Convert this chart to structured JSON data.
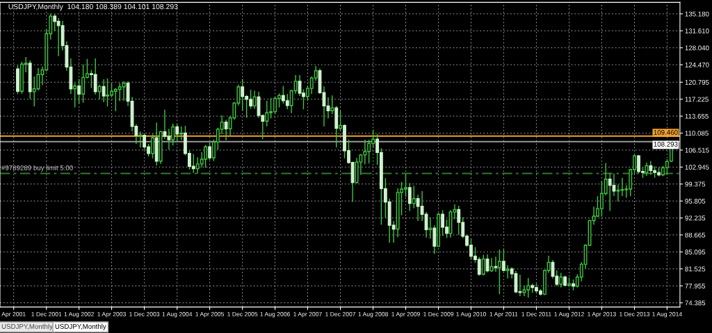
{
  "chart_data": {
    "type": "candlestick",
    "title": "USDJPY,Monthly  104.180 108.389 104.101 108.293",
    "color": "#3cc83c",
    "colors": [
      "#cef1ce",
      "#3cc83c",
      "#3cc83c",
      "#cef1ce",
      "#3cc83c",
      "#3cc83c",
      "#3cc83c",
      "#3cc83c",
      "#3cc83c",
      "#cef1ce",
      "#cef1ce",
      "#cef1ce",
      "#cef1ce",
      "#cef1ce",
      "#3cc83c",
      "#cef1ce",
      "#3cc83c",
      "#3cc83c",
      "#cef1ce",
      "#cef1ce",
      "#3cc83c",
      "#cef1ce",
      "#3cc83c",
      "#3cc83c",
      "#3cc83c",
      "#3cc83c",
      "#3cc83c",
      "#cef1ce",
      "#cef1ce",
      "#cef1ce",
      "#3cc83c",
      "#cef1ce",
      "#cef1ce",
      "#3cc83c",
      "#cef1ce",
      "#3cc83c",
      "#cef1ce",
      "#cef1ce",
      "#3cc83c",
      "#cef1ce",
      "#3cc83c",
      "#cef1ce",
      "#cef1ce",
      "#cef1ce",
      "#3cc83c",
      "#3cc83c",
      "#3cc83c",
      "#cef1ce",
      "#3cc83c",
      "#3cc83c",
      "#3cc83c",
      "#cef1ce",
      "#3cc83c",
      "#3cc83c",
      "#3cc83c",
      "#cef1ce",
      "#cef1ce",
      "#cef1ce",
      "#3cc83c",
      "#cef1ce",
      "#cef1ce",
      "#3cc83c",
      "#3cc83c",
      "#3cc83c",
      "#3cc83c",
      "#cef1ce",
      "#cef1ce",
      "#3cc83c",
      "#3cc83c",
      "#cef1ce",
      "#cef1ce",
      "#3cc83c",
      "#3cc83c",
      "#3cc83c",
      "#cef1ce",
      "#cef1ce",
      "#cef1ce",
      "#3cc83c",
      "#cef1ce",
      "#3cc83c",
      "#cef1ce",
      "#cef1ce",
      "#cef1ce",
      "#3cc83c",
      "#3cc83c",
      "#3cc83c",
      "#3cc83c",
      "#3cc83c",
      "#cef1ce",
      "#cef1ce",
      "#cef1ce",
      "#cef1ce",
      "#cef1ce",
      "#3cc83c",
      "#3cc83c",
      "#3cc83c",
      "#cef1ce",
      "#3cc83c",
      "#cef1ce",
      "#cef1ce",
      "#cef1ce",
      "#3cc83c",
      "#cef1ce",
      "#3cc83c",
      "#cef1ce",
      "#cef1ce",
      "#3cc83c",
      "#3cc83c",
      "#cef1ce",
      "#cef1ce",
      "#cef1ce",
      "#cef1ce",
      "#cef1ce",
      "#cef1ce",
      "#3cc83c",
      "#cef1ce",
      "#3cc83c",
      "#cef1ce",
      "#3cc83c",
      "#cef1ce",
      "#3cc83c",
      "#cef1ce",
      "#cef1ce",
      "#cef1ce",
      "#3cc83c",
      "#3cc83c",
      "#cef1ce",
      "#cef1ce",
      "#cef1ce",
      "#3cc83c",
      "#3cc83c",
      "#cef1ce",
      "#cef1ce",
      "#3cc83c",
      "#cef1ce",
      "#3cc83c",
      "#cef1ce",
      "#3cc83c",
      "#3cc83c",
      "#3cc83c",
      "#3cc83c",
      "#3cc83c",
      "#3cc83c",
      "#3cc83c",
      "#3cc83c",
      "#cef1ce",
      "#cef1ce",
      "#3cc83c",
      "#3cc83c",
      "#3cc83c",
      "#3cc83c",
      "#3cc83c",
      "#cef1ce",
      "#cef1ce",
      "#3cc83c",
      "#cef1ce",
      "#cef1ce",
      "#cef1ce",
      "#3cc83c",
      "#3cc83c",
      "#3cc83c"
    ],
    "x": [
      "2001-05",
      "2001-06",
      "2001-07",
      "2001-08",
      "2001-09",
      "2001-10",
      "2001-11",
      "2001-12",
      "2002-01",
      "2002-02",
      "2002-03",
      "2002-04",
      "2002-05",
      "2002-06",
      "2002-07",
      "2002-08",
      "2002-09",
      "2002-10",
      "2002-11",
      "2002-12",
      "2003-01",
      "2003-02",
      "2003-03",
      "2003-04",
      "2003-05",
      "2003-06",
      "2003-07",
      "2003-08",
      "2003-09",
      "2003-10",
      "2003-11",
      "2003-12",
      "2004-01",
      "2004-02",
      "2004-03",
      "2004-04",
      "2004-05",
      "2004-06",
      "2004-07",
      "2004-08",
      "2004-09",
      "2004-10",
      "2004-11",
      "2004-12",
      "2005-01",
      "2005-02",
      "2005-03",
      "2005-04",
      "2005-05",
      "2005-06",
      "2005-07",
      "2005-08",
      "2005-09",
      "2005-10",
      "2005-11",
      "2005-12",
      "2006-01",
      "2006-02",
      "2006-03",
      "2006-04",
      "2006-05",
      "2006-06",
      "2006-07",
      "2006-08",
      "2006-09",
      "2006-10",
      "2006-11",
      "2006-12",
      "2007-01",
      "2007-02",
      "2007-03",
      "2007-04",
      "2007-05",
      "2007-06",
      "2007-07",
      "2007-08",
      "2007-09",
      "2007-10",
      "2007-11",
      "2007-12",
      "2008-01",
      "2008-02",
      "2008-03",
      "2008-04",
      "2008-05",
      "2008-06",
      "2008-07",
      "2008-08",
      "2008-09",
      "2008-10",
      "2008-11",
      "2008-12",
      "2009-01",
      "2009-02",
      "2009-03",
      "2009-04",
      "2009-05",
      "2009-06",
      "2009-07",
      "2009-08",
      "2009-09",
      "2009-10",
      "2009-11",
      "2009-12",
      "2010-01",
      "2010-02",
      "2010-03",
      "2010-04",
      "2010-05",
      "2010-06",
      "2010-07",
      "2010-08",
      "2010-09",
      "2010-10",
      "2010-11",
      "2010-12",
      "2011-01",
      "2011-02",
      "2011-03",
      "2011-04",
      "2011-05",
      "2011-06",
      "2011-07",
      "2011-08",
      "2011-09",
      "2011-10",
      "2011-11",
      "2011-12",
      "2012-01",
      "2012-02",
      "2012-03",
      "2012-04",
      "2012-05",
      "2012-06",
      "2012-07",
      "2012-08",
      "2012-09",
      "2012-10",
      "2012-11",
      "2012-12",
      "2013-01",
      "2013-02",
      "2013-03",
      "2013-04",
      "2013-05",
      "2013-06",
      "2013-07",
      "2013-08",
      "2013-09",
      "2013-10",
      "2013-11",
      "2013-12",
      "2014-01",
      "2014-02",
      "2014-03",
      "2014-04",
      "2014-05",
      "2014-06",
      "2014-07",
      "2014-08",
      "2014-09"
    ],
    "ohlc": [
      [
        123.6,
        124.2,
        118.4,
        118.9
      ],
      [
        118.9,
        125.0,
        118.5,
        124.6
      ],
      [
        124.6,
        126.0,
        123.0,
        124.8
      ],
      [
        124.8,
        125.3,
        117.4,
        118.8
      ],
      [
        118.8,
        121.9,
        115.8,
        119.4
      ],
      [
        119.4,
        123.7,
        119.2,
        122.4
      ],
      [
        122.4,
        124.0,
        120.3,
        123.4
      ],
      [
        123.4,
        131.8,
        123.2,
        131.0
      ],
      [
        131.0,
        135.1,
        129.9,
        134.7
      ],
      [
        134.7,
        135.0,
        131.6,
        133.6
      ],
      [
        133.6,
        134.2,
        126.4,
        132.7
      ],
      [
        132.7,
        133.6,
        127.6,
        128.5
      ],
      [
        128.5,
        129.3,
        123.3,
        124.0
      ],
      [
        124.0,
        125.7,
        118.4,
        119.4
      ],
      [
        119.4,
        120.5,
        115.6,
        120.0
      ],
      [
        120.0,
        121.4,
        116.4,
        118.3
      ],
      [
        118.3,
        124.4,
        116.6,
        121.8
      ],
      [
        121.8,
        125.6,
        121.7,
        122.6
      ],
      [
        122.6,
        123.3,
        119.7,
        122.4
      ],
      [
        122.4,
        125.7,
        118.3,
        118.8
      ],
      [
        118.8,
        120.2,
        117.3,
        119.9
      ],
      [
        119.9,
        121.3,
        116.7,
        117.9
      ],
      [
        117.9,
        121.5,
        115.8,
        118.1
      ],
      [
        118.1,
        120.5,
        117.7,
        118.9
      ],
      [
        118.9,
        119.4,
        114.8,
        119.3
      ],
      [
        119.3,
        120.5,
        116.9,
        119.8
      ],
      [
        119.8,
        120.9,
        117.0,
        120.6
      ],
      [
        120.6,
        120.9,
        115.9,
        116.8
      ],
      [
        116.8,
        117.6,
        110.5,
        111.5
      ],
      [
        111.5,
        111.9,
        107.9,
        109.6
      ],
      [
        109.6,
        110.3,
        107.2,
        109.6
      ],
      [
        109.6,
        109.9,
        106.7,
        107.2
      ],
      [
        107.2,
        107.7,
        105.3,
        105.8
      ],
      [
        105.8,
        109.8,
        104.9,
        109.1
      ],
      [
        109.1,
        112.2,
        103.4,
        104.2
      ],
      [
        104.2,
        110.5,
        103.7,
        110.4
      ],
      [
        110.4,
        114.9,
        108.9,
        109.4
      ],
      [
        109.4,
        110.9,
        106.7,
        108.7
      ],
      [
        108.7,
        112.0,
        107.6,
        111.4
      ],
      [
        111.4,
        111.9,
        108.4,
        109.9
      ],
      [
        109.9,
        111.4,
        108.8,
        110.1
      ],
      [
        110.1,
        111.5,
        105.5,
        105.8
      ],
      [
        105.8,
        106.3,
        102.5,
        103.1
      ],
      [
        103.1,
        105.6,
        101.8,
        102.6
      ],
      [
        102.6,
        104.9,
        101.7,
        103.6
      ],
      [
        103.6,
        106.0,
        103.0,
        104.6
      ],
      [
        104.6,
        107.5,
        102.9,
        107.2
      ],
      [
        107.2,
        108.0,
        104.5,
        104.9
      ],
      [
        104.9,
        108.6,
        104.3,
        108.2
      ],
      [
        108.2,
        111.1,
        106.7,
        110.9
      ],
      [
        110.9,
        113.7,
        110.0,
        112.4
      ],
      [
        112.4,
        112.8,
        108.7,
        111.0
      ],
      [
        111.0,
        113.6,
        109.6,
        113.3
      ],
      [
        113.3,
        116.5,
        113.0,
        116.4
      ],
      [
        116.4,
        120.2,
        116.0,
        119.8
      ],
      [
        119.8,
        121.4,
        114.9,
        117.8
      ],
      [
        117.8,
        118.0,
        113.4,
        117.2
      ],
      [
        117.2,
        119.1,
        115.3,
        115.8
      ],
      [
        115.8,
        118.9,
        115.3,
        117.7
      ],
      [
        117.7,
        118.7,
        113.4,
        113.8
      ],
      [
        113.8,
        113.9,
        108.9,
        112.6
      ],
      [
        112.6,
        116.8,
        111.6,
        114.4
      ],
      [
        114.4,
        117.4,
        113.3,
        114.6
      ],
      [
        114.6,
        117.5,
        114.2,
        117.4
      ],
      [
        117.4,
        118.3,
        115.6,
        118.0
      ],
      [
        118.0,
        119.9,
        116.4,
        116.9
      ],
      [
        116.9,
        118.2,
        115.2,
        115.9
      ],
      [
        115.9,
        119.1,
        114.4,
        119.0
      ],
      [
        119.0,
        122.2,
        118.5,
        121.0
      ],
      [
        121.0,
        122.2,
        118.0,
        118.5
      ],
      [
        118.5,
        119.2,
        115.2,
        117.8
      ],
      [
        117.8,
        120.0,
        117.0,
        119.5
      ],
      [
        119.5,
        121.9,
        118.4,
        121.7
      ],
      [
        121.7,
        124.1,
        121.2,
        123.2
      ],
      [
        123.2,
        123.6,
        118.4,
        118.6
      ],
      [
        118.6,
        119.8,
        111.6,
        115.8
      ],
      [
        115.8,
        117.5,
        113.3,
        114.8
      ],
      [
        114.8,
        117.9,
        114.2,
        115.4
      ],
      [
        115.4,
        115.7,
        107.2,
        111.1
      ],
      [
        111.1,
        114.7,
        110.6,
        111.7
      ],
      [
        111.7,
        111.8,
        104.9,
        106.4
      ],
      [
        106.4,
        108.6,
        103.7,
        103.9
      ],
      [
        103.9,
        104.0,
        95.7,
        99.7
      ],
      [
        99.7,
        104.8,
        99.6,
        104.0
      ],
      [
        104.0,
        105.6,
        101.4,
        105.5
      ],
      [
        105.5,
        108.6,
        103.6,
        106.2
      ],
      [
        106.2,
        108.6,
        103.8,
        107.9
      ],
      [
        107.9,
        110.7,
        107.2,
        108.8
      ],
      [
        108.8,
        109.8,
        103.5,
        106.0
      ],
      [
        106.0,
        106.8,
        90.9,
        98.4
      ],
      [
        98.4,
        100.5,
        92.4,
        95.6
      ],
      [
        95.6,
        96.2,
        87.1,
        90.7
      ],
      [
        90.7,
        91.5,
        87.1,
        89.9
      ],
      [
        89.9,
        98.4,
        88.3,
        97.6
      ],
      [
        97.6,
        99.7,
        92.9,
        98.3
      ],
      [
        98.3,
        101.4,
        96.8,
        98.6
      ],
      [
        98.6,
        99.5,
        93.8,
        95.3
      ],
      [
        95.3,
        98.9,
        94.4,
        96.3
      ],
      [
        96.3,
        97.0,
        91.7,
        94.7
      ],
      [
        94.7,
        97.8,
        91.7,
        93.0
      ],
      [
        93.0,
        93.4,
        88.2,
        89.8
      ],
      [
        89.8,
        92.3,
        88.0,
        90.1
      ],
      [
        90.1,
        90.6,
        84.8,
        86.3
      ],
      [
        86.3,
        93.2,
        86.2,
        93.0
      ],
      [
        93.0,
        93.8,
        88.6,
        90.3
      ],
      [
        90.3,
        91.8,
        88.1,
        89.0
      ],
      [
        89.0,
        93.8,
        88.2,
        93.5
      ],
      [
        93.5,
        95.0,
        92.1,
        94.0
      ],
      [
        94.0,
        94.7,
        88.8,
        91.3
      ],
      [
        91.3,
        92.3,
        88.1,
        88.4
      ],
      [
        88.4,
        88.7,
        86.3,
        86.5
      ],
      [
        86.5,
        87.8,
        83.6,
        84.2
      ],
      [
        84.2,
        86.0,
        82.9,
        83.5
      ],
      [
        83.5,
        83.9,
        80.2,
        80.4
      ],
      [
        80.4,
        84.4,
        80.3,
        83.6
      ],
      [
        83.6,
        84.5,
        80.9,
        81.1
      ],
      [
        81.1,
        83.7,
        81.0,
        82.0
      ],
      [
        82.0,
        84.0,
        81.0,
        81.8
      ],
      [
        81.8,
        85.5,
        76.3,
        83.1
      ],
      [
        83.1,
        85.5,
        81.1,
        81.2
      ],
      [
        81.2,
        82.2,
        79.6,
        81.5
      ],
      [
        81.5,
        81.8,
        79.6,
        80.5
      ],
      [
        80.5,
        81.0,
        76.5,
        76.7
      ],
      [
        76.7,
        80.2,
        75.9,
        76.6
      ],
      [
        76.6,
        77.9,
        75.9,
        77.1
      ],
      [
        77.1,
        79.5,
        75.6,
        78.0
      ],
      [
        78.0,
        78.3,
        76.6,
        77.6
      ],
      [
        77.6,
        78.3,
        76.6,
        76.9
      ],
      [
        76.9,
        77.2,
        76.0,
        76.2
      ],
      [
        76.2,
        81.2,
        76.1,
        81.2
      ],
      [
        81.2,
        84.2,
        80.8,
        82.9
      ],
      [
        82.9,
        83.3,
        79.6,
        80.0
      ],
      [
        80.0,
        81.1,
        78.0,
        78.3
      ],
      [
        78.3,
        80.6,
        77.7,
        79.8
      ],
      [
        79.8,
        80.0,
        77.9,
        78.1
      ],
      [
        78.1,
        79.6,
        77.9,
        78.4
      ],
      [
        78.4,
        79.2,
        77.1,
        77.9
      ],
      [
        77.9,
        80.3,
        77.7,
        79.8
      ],
      [
        79.8,
        82.8,
        79.0,
        82.5
      ],
      [
        82.5,
        86.6,
        81.7,
        86.5
      ],
      [
        86.5,
        91.7,
        86.5,
        91.7
      ],
      [
        91.7,
        94.5,
        90.9,
        92.6
      ],
      [
        92.6,
        96.7,
        92.6,
        94.2
      ],
      [
        94.2,
        99.9,
        92.6,
        97.4
      ],
      [
        97.4,
        103.7,
        97.1,
        100.4
      ],
      [
        100.4,
        101.6,
        93.8,
        99.1
      ],
      [
        99.1,
        101.5,
        97.0,
        97.9
      ],
      [
        97.9,
        99.2,
        95.8,
        98.1
      ],
      [
        98.1,
        100.6,
        96.9,
        98.2
      ],
      [
        98.2,
        99.0,
        96.6,
        98.3
      ],
      [
        98.3,
        102.5,
        96.9,
        102.4
      ],
      [
        102.4,
        105.4,
        101.6,
        105.3
      ],
      [
        105.3,
        105.4,
        101.8,
        102.0
      ],
      [
        102.0,
        102.8,
        100.8,
        101.8
      ],
      [
        101.8,
        103.8,
        101.2,
        103.2
      ],
      [
        103.2,
        104.1,
        101.4,
        102.2
      ],
      [
        102.2,
        103.0,
        100.8,
        101.8
      ],
      [
        101.8,
        102.8,
        101.1,
        101.3
      ],
      [
        101.3,
        103.1,
        101.1,
        102.8
      ],
      [
        102.8,
        104.5,
        101.5,
        104.1
      ],
      [
        104.18,
        108.389,
        104.101,
        108.293
      ]
    ],
    "xlim": [
      "2000-12-20",
      "2014-11-05"
    ],
    "xticks": [
      {
        "value": "2001-04-01",
        "label": "Apr 2001"
      },
      {
        "value": "2001-12-01",
        "label": "1 Dec 2001"
      },
      {
        "value": "2002-08-01",
        "label": "1 Aug 2002"
      },
      {
        "value": "2003-04-01",
        "label": "1 Apr 2003"
      },
      {
        "value": "2003-12-01",
        "label": "1 Dec 2003"
      },
      {
        "value": "2004-08-01",
        "label": "1 Aug 2004"
      },
      {
        "value": "2005-04-01",
        "label": "1 Apr 2005"
      },
      {
        "value": "2005-12-01",
        "label": "1 Dec 2005"
      },
      {
        "value": "2006-08-01",
        "label": "1 Aug 2006"
      },
      {
        "value": "2007-04-01",
        "label": "1 Apr 2007"
      },
      {
        "value": "2007-12-01",
        "label": "1 Dec 2007"
      },
      {
        "value": "2008-08-01",
        "label": "1 Aug 2008"
      },
      {
        "value": "2009-04-01",
        "label": "1 Apr 2009"
      },
      {
        "value": "2009-12-01",
        "label": "1 Dec 2009"
      },
      {
        "value": "2010-08-01",
        "label": "1 Aug 2010"
      },
      {
        "value": "2011-04-01",
        "label": "1 Apr 2011"
      },
      {
        "value": "2011-12-01",
        "label": "1 Dec 2011"
      },
      {
        "value": "2012-08-01",
        "label": "1 Aug 2012"
      },
      {
        "value": "2013-04-01",
        "label": "1 Apr 2013"
      },
      {
        "value": "2013-12-01",
        "label": "1 Dec 2013"
      },
      {
        "value": "2014-08-01",
        "label": "1 Aug 2014"
      }
    ],
    "ylim": [
      73.5,
      137.6
    ],
    "yticks": [
      {
        "value": 135.18,
        "label": "135.180"
      },
      {
        "value": 131.61,
        "label": "131.610"
      },
      {
        "value": 128.04,
        "label": "128.040"
      },
      {
        "value": 124.47,
        "label": "124.470"
      },
      {
        "value": 120.795,
        "label": "120.795"
      },
      {
        "value": 117.225,
        "label": "117.225"
      },
      {
        "value": 113.655,
        "label": "113.655"
      },
      {
        "value": 110.085,
        "label": "110.085"
      },
      {
        "value": 106.515,
        "label": "106.515"
      },
      {
        "value": 102.945,
        "label": "102.945"
      },
      {
        "value": 99.375,
        "label": "99.375"
      },
      {
        "value": 95.805,
        "label": "95.805"
      },
      {
        "value": 92.235,
        "label": "92.235"
      },
      {
        "value": 88.665,
        "label": "88.665"
      },
      {
        "value": 85.095,
        "label": "85.095"
      },
      {
        "value": 81.525,
        "label": "81.525"
      },
      {
        "value": 77.955,
        "label": "77.955"
      },
      {
        "value": 74.385,
        "label": "74.385"
      }
    ],
    "grid": true,
    "ref_lines": [
      {
        "axis": "y",
        "value": 109.46,
        "label": "109.460",
        "color": "#f0a030",
        "line_style": "solid"
      },
      {
        "axis": "y",
        "value": 108.293,
        "label": "108.293",
        "color": "#9a9a9a",
        "line_style": "solid"
      },
      {
        "axis": "y",
        "value": 101.6,
        "label": "#9789289 buy limit 5.00",
        "color": "#2e7d2e",
        "line_style": "dashed"
      }
    ],
    "annotations": [
      "USDJPY,Monthly",
      "USDJPY,Monthly"
    ]
  }
}
